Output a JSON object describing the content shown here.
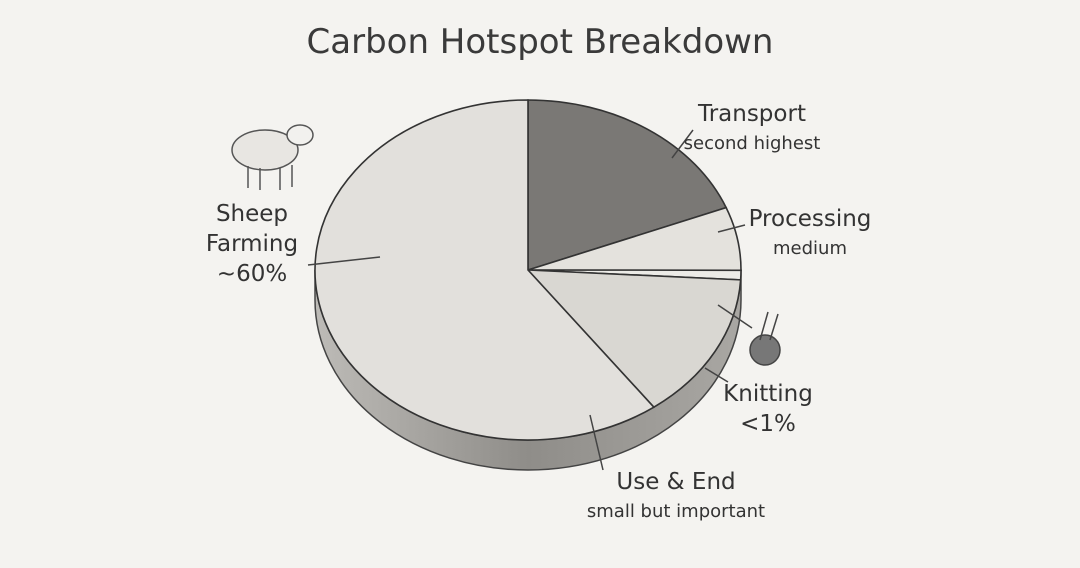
{
  "chart_data": {
    "type": "pie",
    "title": "Carbon Hotspot Breakdown",
    "categories": [
      "Transport",
      "Processing",
      "Knitting",
      "Use & End",
      "Sheep Farming"
    ],
    "values": [
      19,
      6,
      0.9,
      14,
      60
    ],
    "value_labels": [
      null,
      null,
      "<1%",
      null,
      "~60%"
    ],
    "notes": [
      "second highest",
      "medium",
      null,
      "small but important",
      null
    ],
    "colors": [
      "#7a7875",
      "#e4e2dd",
      "#ecebe7",
      "#d9d7d2",
      "#e2e0dc"
    ]
  }
}
